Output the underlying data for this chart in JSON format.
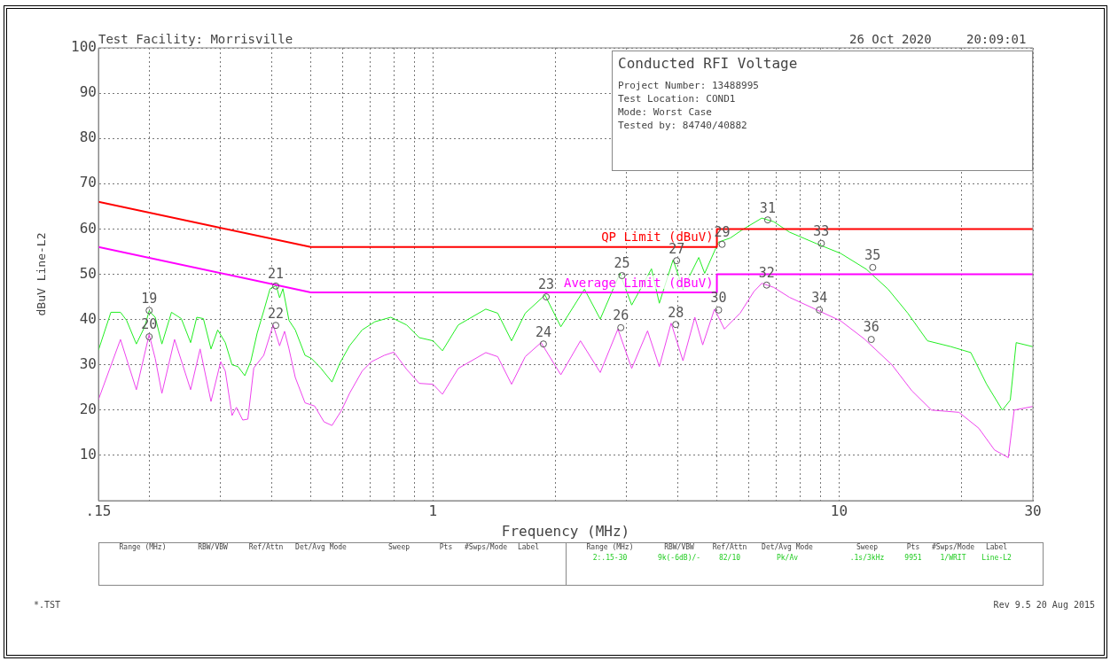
{
  "chart_data": {
    "type": "line",
    "title": "Conducted RFI Voltage",
    "xlabel": "Frequency (MHz)",
    "ylabel": "dBuV Line-L2",
    "log": "x",
    "grid": true,
    "legend": false,
    "marker": "none",
    "line_style": "solid",
    "xlim": [
      0.15,
      30
    ],
    "ylim": [
      0,
      100
    ],
    "xticks": [
      {
        "value": 0.15,
        "label": ".15"
      },
      {
        "value": 0.2,
        "label": null
      },
      {
        "value": 0.3,
        "label": null
      },
      {
        "value": 0.4,
        "label": null
      },
      {
        "value": 0.5,
        "label": null
      },
      {
        "value": 0.6,
        "label": null
      },
      {
        "value": 0.7,
        "label": null
      },
      {
        "value": 0.8,
        "label": null
      },
      {
        "value": 0.9,
        "label": null
      },
      1,
      {
        "value": 2,
        "label": null
      },
      {
        "value": 3,
        "label": null
      },
      {
        "value": 4,
        "label": null
      },
      {
        "value": 5,
        "label": null
      },
      {
        "value": 6,
        "label": null
      },
      {
        "value": 7,
        "label": null
      },
      {
        "value": 8,
        "label": null
      },
      {
        "value": 9,
        "label": null
      },
      10,
      {
        "value": 20,
        "label": null
      },
      30
    ],
    "yticks": [
      10,
      20,
      30,
      40,
      50,
      60,
      70,
      80,
      90,
      100
    ],
    "series": [
      {
        "name": "QP Limit (dBuV)",
        "color": "#ff0000",
        "x": [
          0.15,
          0.5,
          5,
          5,
          30
        ],
        "values": [
          66,
          56,
          56,
          60,
          60
        ]
      },
      {
        "name": "Average Limit (dBuV)",
        "color": "#ff00ff",
        "x": [
          0.15,
          0.5,
          5,
          5,
          30
        ],
        "values": [
          56,
          46,
          46,
          50,
          50
        ]
      },
      {
        "color": "#22ee22",
        "x": [
          0.15,
          0.161,
          0.17,
          0.176,
          0.186,
          0.195,
          0.2,
          0.207,
          0.215,
          0.227,
          0.24,
          0.253,
          0.262,
          0.272,
          0.284,
          0.295,
          0.308,
          0.32,
          0.331,
          0.344,
          0.356,
          0.369,
          0.383,
          0.397,
          0.411,
          0.419,
          0.427,
          0.442,
          0.458,
          0.484,
          0.502,
          0.529,
          0.564,
          0.59,
          0.623,
          0.669,
          0.719,
          0.787,
          0.861,
          0.925,
          1,
          1.055,
          1.154,
          1.349,
          1.443,
          1.561,
          1.687,
          1.887,
          2.064,
          2.36,
          2.581,
          2.885,
          3.085,
          3.451,
          3.608,
          3.902,
          4.126,
          4.512,
          4.666,
          5.046,
          5.395,
          5.77,
          6.452,
          6.901,
          7.547,
          8.825,
          10.09,
          11.67,
          13.2,
          14.76,
          16.5,
          18.87,
          21.1,
          23.08,
          25.23,
          26.39,
          27.29,
          30
        ],
        "values": [
          33.2,
          41.6,
          41.6,
          39.8,
          34.6,
          38.4,
          41.9,
          40.5,
          34.6,
          41.6,
          40.2,
          34.9,
          40.5,
          40.2,
          33.5,
          37.7,
          34.9,
          30,
          29.6,
          27.6,
          30.8,
          37,
          41.9,
          46.8,
          47.5,
          44.8,
          46.8,
          39.8,
          37.7,
          32.1,
          31.4,
          29.3,
          26.2,
          30.4,
          34.2,
          37.7,
          39.5,
          40.5,
          38.8,
          36,
          35.3,
          33.1,
          38.8,
          42.3,
          41.4,
          35.3,
          41.4,
          45.4,
          38.4,
          46.7,
          40.1,
          50.2,
          43.2,
          51.2,
          43.6,
          53.2,
          46.7,
          53.7,
          50.2,
          57.1,
          58,
          59.8,
          62.4,
          61.6,
          59.3,
          56.7,
          54.6,
          51.1,
          46.7,
          41.4,
          35.3,
          34,
          32.7,
          25.7,
          20,
          22.2,
          34.9,
          34
        ]
      },
      {
        "color": "#ee44ee",
        "x": [
          0.15,
          0.17,
          0.186,
          0.2,
          0.207,
          0.215,
          0.231,
          0.253,
          0.267,
          0.284,
          0.3,
          0.308,
          0.32,
          0.328,
          0.34,
          0.35,
          0.362,
          0.383,
          0.404,
          0.419,
          0.431,
          0.442,
          0.458,
          0.484,
          0.511,
          0.539,
          0.564,
          0.595,
          0.623,
          0.669,
          0.706,
          0.759,
          0.801,
          0.861,
          0.925,
          1,
          1.055,
          1.154,
          1.349,
          1.443,
          1.561,
          1.687,
          1.845,
          2.064,
          2.307,
          2.581,
          2.853,
          3.085,
          3.375,
          3.608,
          3.858,
          4.126,
          4.413,
          4.614,
          4.934,
          5.218,
          5.705,
          6.17,
          6.452,
          6.901,
          7.547,
          8.728,
          10.09,
          11.54,
          13.49,
          15.09,
          16.88,
          19.73,
          22.07,
          24.13,
          26.1,
          26.98,
          30
        ],
        "values": [
          22.3,
          35.6,
          24.5,
          36.7,
          31.4,
          23.7,
          35.6,
          24.5,
          33.5,
          21.9,
          30.7,
          28.6,
          18.8,
          20.6,
          17.8,
          18,
          29.3,
          32.1,
          38.8,
          34.2,
          37.4,
          33.5,
          27.2,
          21.6,
          20.9,
          17.4,
          16.6,
          19.9,
          23.7,
          28.6,
          30.7,
          32.1,
          32.8,
          29,
          25.9,
          25.7,
          23.5,
          29.2,
          32.7,
          31.8,
          25.7,
          31.8,
          34.9,
          27.8,
          35.3,
          28.3,
          37.9,
          29.2,
          37.5,
          29.6,
          39.2,
          30.9,
          40.5,
          34.4,
          42.3,
          37.9,
          41.4,
          46.2,
          48,
          47.1,
          44.9,
          42.3,
          39.7,
          35.7,
          30,
          24.3,
          20,
          19.5,
          16,
          11.2,
          9.5,
          20,
          20.8
        ]
      }
    ],
    "annotations": [
      "Test Facility: Morrisville",
      "26 Oct 2020",
      "20:09:01",
      "Project Number: 13488995",
      "Test Location: COND1",
      "Mode: Worst Case",
      "Tested by: 84740/40882",
      "Range (MHz)",
      "RBW/VBW",
      "Ref/Attn",
      "Det/Avg Mode",
      "Sweep",
      "Pts",
      "#Swps/Mode",
      "Label",
      "Range (MHz)",
      "RBW/VBW",
      "Ref/Attn",
      "Det/Avg Mode",
      "Sweep",
      "Pts",
      "#Swps/Mode",
      "Label",
      "2:.15-30",
      "9k(-6dB)/-",
      "82/10",
      "Pk/Av",
      ".1s/3kHz",
      "9951",
      "1/WRIT",
      "Line-L2",
      "*.TST",
      "Rev 9.5 20 Aug 2015",
      {
        "text": "19",
        "x": 0.2,
        "y": 42
      },
      {
        "text": "20",
        "x": 0.2,
        "y": 36.2
      },
      {
        "text": "21",
        "x": 0.41,
        "y": 47.4
      },
      {
        "text": "22",
        "x": 0.41,
        "y": 38.7
      },
      {
        "text": "23",
        "x": 1.9,
        "y": 45
      },
      {
        "text": "24",
        "x": 1.87,
        "y": 34.6
      },
      {
        "text": "25",
        "x": 2.92,
        "y": 49.7
      },
      {
        "text": "26",
        "x": 2.9,
        "y": 38.2
      },
      {
        "text": "27",
        "x": 3.98,
        "y": 53
      },
      {
        "text": "28",
        "x": 3.96,
        "y": 38.9
      },
      {
        "text": "29",
        "x": 5.15,
        "y": 56.6
      },
      {
        "text": "30",
        "x": 5.05,
        "y": 42.1
      },
      {
        "text": "31",
        "x": 6.67,
        "y": 62
      },
      {
        "text": "32",
        "x": 6.63,
        "y": 47.6
      },
      {
        "text": "33",
        "x": 9.04,
        "y": 56.8
      },
      {
        "text": "34",
        "x": 8.94,
        "y": 42.1
      },
      {
        "text": "35",
        "x": 12.1,
        "y": 51.5
      },
      {
        "text": "36",
        "x": 12,
        "y": 35.6
      }
    ]
  }
}
